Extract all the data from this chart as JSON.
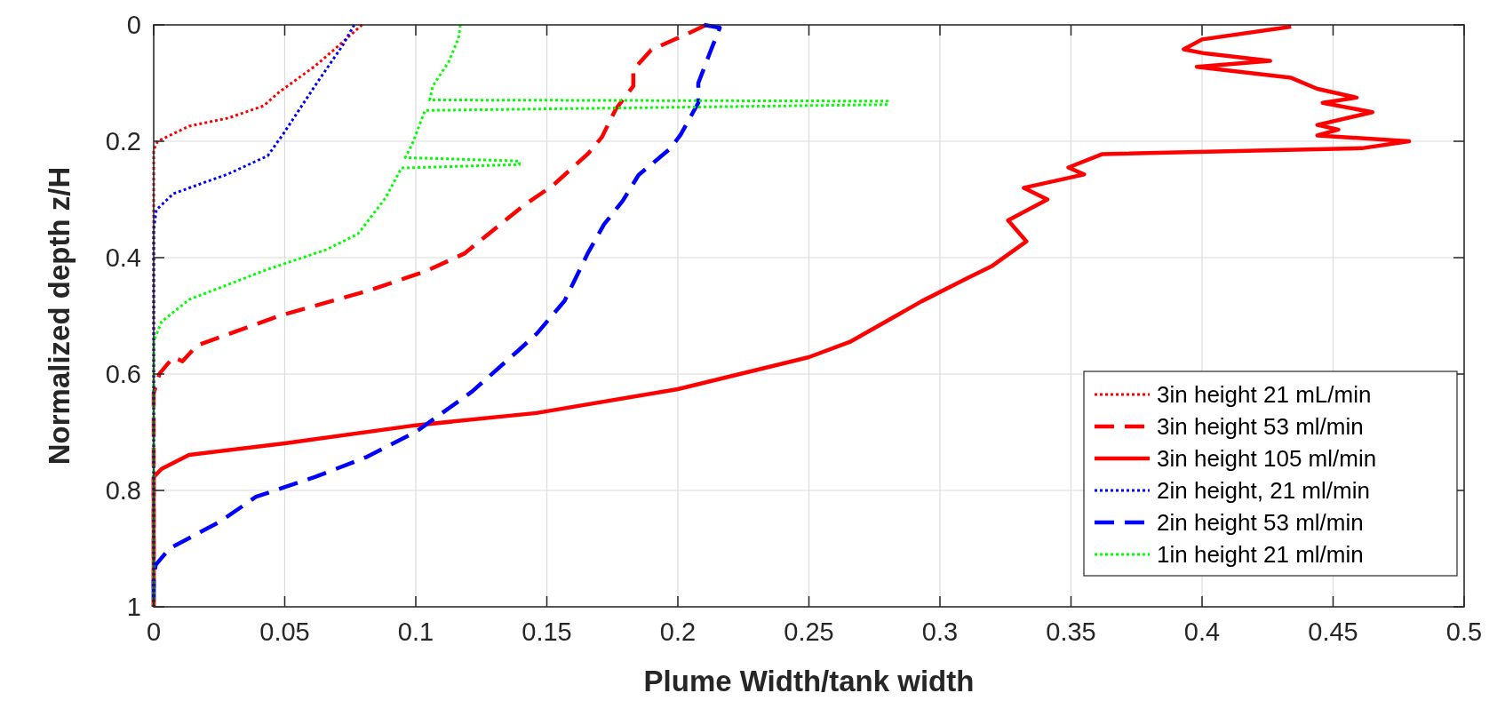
{
  "chart_data": {
    "type": "line",
    "xlabel": "Plume Width/tank width",
    "ylabel": "Normalized depth z/H",
    "xlim": [
      0,
      0.5
    ],
    "xticks": [
      0,
      0.05,
      0.1,
      0.15,
      0.2,
      0.25,
      0.3,
      0.35,
      0.4,
      0.45,
      0.5
    ],
    "ylim": [
      1,
      0
    ],
    "yticks": [
      0,
      0.2,
      0.4,
      0.6,
      0.8,
      1
    ],
    "grid": true,
    "legend": "bottom right",
    "series": [
      {
        "name": "3in height 21 mL/min",
        "color": "#ff0000",
        "line_style": "dotted",
        "x": [
          0.0795,
          0.0705,
          0.0615,
          0.048,
          0.042,
          0.0285,
          0.0135,
          0.0015,
          0,
          0
        ],
        "values": [
          0,
          0.036,
          0.071,
          0.115,
          0.139,
          0.16,
          0.174,
          0.2,
          0.215,
          1
        ]
      },
      {
        "name": "3in height 53 ml/min",
        "color": "#ff0000",
        "line_style": "dashed",
        "x": [
          0.2108,
          0.2033,
          0.1898,
          0.183,
          0.183,
          0.1763,
          0.171,
          0.1658,
          0.1523,
          0.141,
          0.1185,
          0.1035,
          0.081,
          0.048,
          0.0165,
          0.011,
          0.0075,
          0.00225,
          0,
          0
        ],
        "values": [
          0,
          0.016,
          0.043,
          0.077,
          0.105,
          0.145,
          0.193,
          0.221,
          0.276,
          0.311,
          0.393,
          0.424,
          0.458,
          0.5,
          0.551,
          0.578,
          0.571,
          0.599,
          0.633,
          1
        ]
      },
      {
        "name": "3in height 105 ml/min",
        "color": "#ff0000",
        "line_style": "solid",
        "x": [
          0.434,
          0.4,
          0.393,
          0.401,
          0.426,
          0.398,
          0.434,
          0.444,
          0.459,
          0.446,
          0.465,
          0.444,
          0.452,
          0.444,
          0.479,
          0.461,
          0.362,
          0.349,
          0.355,
          0.332,
          0.341,
          0.326,
          0.333,
          0.32,
          0.311,
          0.293,
          0.266,
          0.25,
          0.2,
          0.146,
          0.1,
          0.05,
          0.0135,
          0.003,
          0,
          0
        ],
        "values": [
          0.003,
          0.025,
          0.042,
          0.049,
          0.062,
          0.072,
          0.091,
          0.11,
          0.125,
          0.134,
          0.15,
          0.172,
          0.18,
          0.19,
          0.2,
          0.212,
          0.222,
          0.245,
          0.257,
          0.28,
          0.3,
          0.336,
          0.372,
          0.414,
          0.434,
          0.475,
          0.544,
          0.571,
          0.626,
          0.667,
          0.688,
          0.719,
          0.739,
          0.763,
          0.777,
          1
        ]
      },
      {
        "name": "2in height, 21 ml/min",
        "color": "#0000ff",
        "line_style": "dotted",
        "x": [
          0.0765,
          0.072,
          0.0615,
          0.0495,
          0.0435,
          0.0285,
          0.0075,
          0.001,
          0,
          0
        ],
        "values": [
          0,
          0.036,
          0.105,
          0.187,
          0.225,
          0.256,
          0.29,
          0.318,
          0.352,
          1
        ]
      },
      {
        "name": "2in height 53 ml/min",
        "color": "#0000ff",
        "line_style": "dashed",
        "x": [
          0.21,
          0.216,
          0.2123,
          0.2078,
          0.2078,
          0.201,
          0.197,
          0.185,
          0.179,
          0.1718,
          0.1658,
          0.1568,
          0.1463,
          0.1395,
          0.1215,
          0.1005,
          0.081,
          0.0615,
          0.039,
          0.0255,
          0.006,
          0.00075,
          0,
          0
        ],
        "values": [
          0,
          0.005,
          0.047,
          0.1,
          0.134,
          0.189,
          0.213,
          0.258,
          0.302,
          0.343,
          0.391,
          0.474,
          0.53,
          0.558,
          0.63,
          0.698,
          0.743,
          0.777,
          0.811,
          0.853,
          0.9,
          0.928,
          0.95,
          1
        ]
      },
      {
        "name": "1in height 21 ml/min",
        "color": "#00ff00",
        "line_style": "dotted",
        "x": [
          0.117,
          0.1163,
          0.1125,
          0.1065,
          0.1053,
          0.28,
          0.28,
          0.1035,
          0.099,
          0.096,
          0.1395,
          0.1395,
          0.0945,
          0.0885,
          0.078,
          0.066,
          0.0435,
          0.0135,
          0.003,
          0,
          0
        ],
        "values": [
          0,
          0.023,
          0.064,
          0.105,
          0.129,
          0.131,
          0.137,
          0.147,
          0.201,
          0.228,
          0.234,
          0.24,
          0.246,
          0.297,
          0.359,
          0.386,
          0.42,
          0.472,
          0.51,
          0.544,
          1
        ]
      }
    ]
  }
}
